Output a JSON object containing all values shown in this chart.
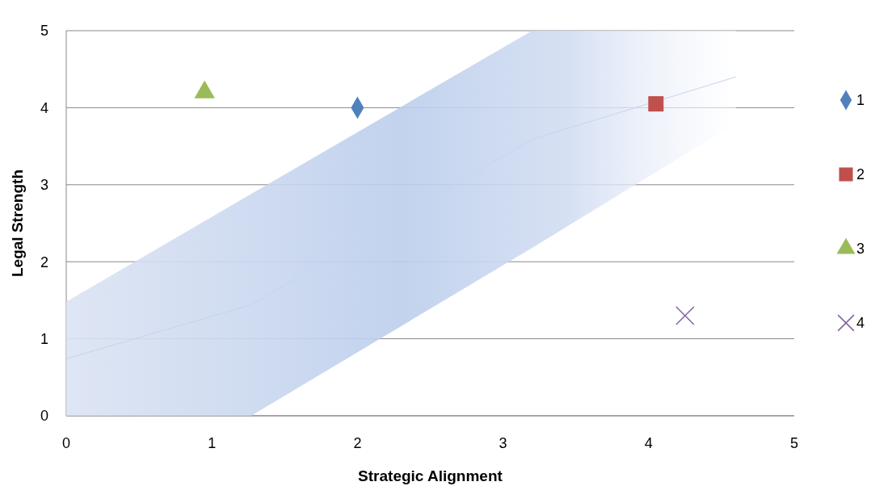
{
  "chart_data": {
    "type": "scatter",
    "xlabel": "Strategic Alignment",
    "ylabel": "Legal Strength",
    "xlim": [
      0,
      5
    ],
    "ylim": [
      0,
      5
    ],
    "xticks": [
      0,
      1,
      2,
      3,
      4,
      5
    ],
    "yticks": [
      0,
      1,
      2,
      3,
      4,
      5
    ],
    "grid": "y",
    "legend": "right",
    "series": [
      {
        "type": "line",
        "color": "#c6d4ee",
        "x": [
          0,
          1.27,
          3.2,
          4.6
        ],
        "values": [
          0.74,
          1.44,
          3.59,
          4.4
        ],
        "lower": [
          0,
          0,
          2.18,
          3.8
        ],
        "upper": [
          1.48,
          2.88,
          5,
          5
        ]
      },
      {
        "name": "1",
        "color": "#4f81bd",
        "marker": "diamond",
        "x": [
          2
        ],
        "values": [
          4
        ]
      },
      {
        "name": "2",
        "color": "#c0504d",
        "marker": "square",
        "x": [
          4.05
        ],
        "values": [
          4.05
        ]
      },
      {
        "name": "3",
        "color": "#9bbb59",
        "marker": "triangle",
        "x": [
          0.95
        ],
        "values": [
          4.2
        ]
      },
      {
        "name": "4",
        "color": "#8064a2",
        "marker": "cross",
        "x": [
          4.25
        ],
        "values": [
          1.3
        ]
      }
    ]
  }
}
